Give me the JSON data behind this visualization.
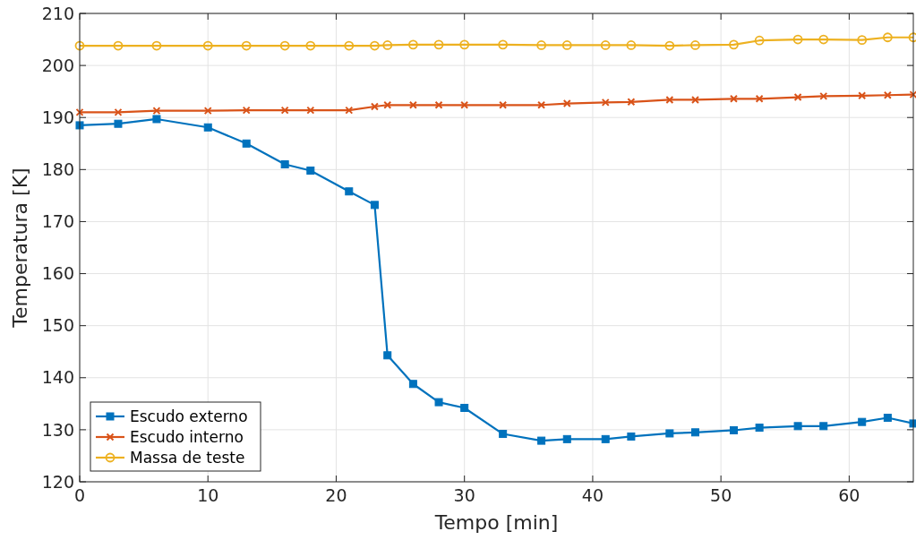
{
  "chart_data": {
    "type": "line",
    "xlabel": "Tempo [min]",
    "ylabel": "Temperatura [K]",
    "x": [
      0,
      3,
      6,
      10,
      13,
      16,
      18,
      21,
      23,
      24,
      26,
      28,
      30,
      33,
      36,
      38,
      41,
      43,
      46,
      48,
      51,
      53,
      56,
      58,
      61,
      63,
      65
    ],
    "series": [
      {
        "name": "Escudo externo",
        "color": "#0072bd",
        "marker": "square",
        "values": [
          188.5,
          188.8,
          189.7,
          188.1,
          185.0,
          181.0,
          179.8,
          175.8,
          173.2,
          144.3,
          138.8,
          135.3,
          134.2,
          129.2,
          127.9,
          128.2,
          128.2,
          128.7,
          129.3,
          129.5,
          129.9,
          130.4,
          130.7,
          130.7,
          131.5,
          132.3,
          131.2
        ]
      },
      {
        "name": "Escudo interno",
        "color": "#d95319",
        "marker": "cross",
        "values": [
          191.0,
          191.0,
          191.3,
          191.3,
          191.4,
          191.4,
          191.4,
          191.4,
          192.1,
          192.4,
          192.4,
          192.4,
          192.4,
          192.4,
          192.4,
          192.7,
          192.9,
          193.0,
          193.4,
          193.4,
          193.6,
          193.6,
          193.9,
          194.1,
          194.2,
          194.3,
          194.4
        ]
      },
      {
        "name": "Massa de teste",
        "color": "#edb120",
        "marker": "circle",
        "values": [
          203.8,
          203.8,
          203.8,
          203.8,
          203.8,
          203.8,
          203.8,
          203.8,
          203.8,
          203.9,
          204.0,
          204.0,
          204.0,
          204.0,
          203.9,
          203.9,
          203.9,
          203.9,
          203.8,
          203.9,
          204.0,
          204.8,
          205.0,
          205.0,
          204.9,
          205.4,
          205.4
        ]
      }
    ],
    "xlim": [
      0,
      65
    ],
    "xticks": [
      0,
      10,
      20,
      30,
      40,
      50,
      60
    ],
    "ylim": [
      120,
      210
    ],
    "yticks": [
      120,
      130,
      140,
      150,
      160,
      170,
      180,
      190,
      200,
      210
    ],
    "grid": true,
    "legend": "bottom left",
    "line_style": "solid"
  }
}
